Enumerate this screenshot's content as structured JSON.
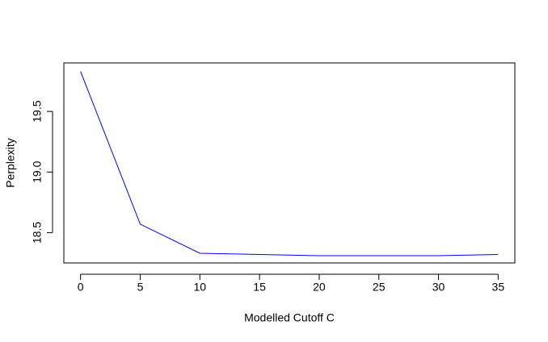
{
  "chart_data": {
    "type": "line",
    "x": [
      0,
      5,
      10,
      15,
      20,
      25,
      30,
      35
    ],
    "series": [
      {
        "color": "#0000ff",
        "values": [
          19.83,
          18.57,
          18.33,
          18.32,
          18.31,
          18.31,
          18.31,
          18.32
        ]
      }
    ],
    "xlabel": "Modelled Cutoff C",
    "ylabel": "Perplexity",
    "xlim": [
      -1.4,
      36.4
    ],
    "ylim": [
      18.25,
      19.9
    ],
    "xticks": [
      0,
      5,
      10,
      15,
      20,
      25,
      30,
      35
    ],
    "yticks": [
      18.5,
      {
        "value": 19,
        "label": "19.0"
      },
      19.5
    ],
    "grid": false
  }
}
